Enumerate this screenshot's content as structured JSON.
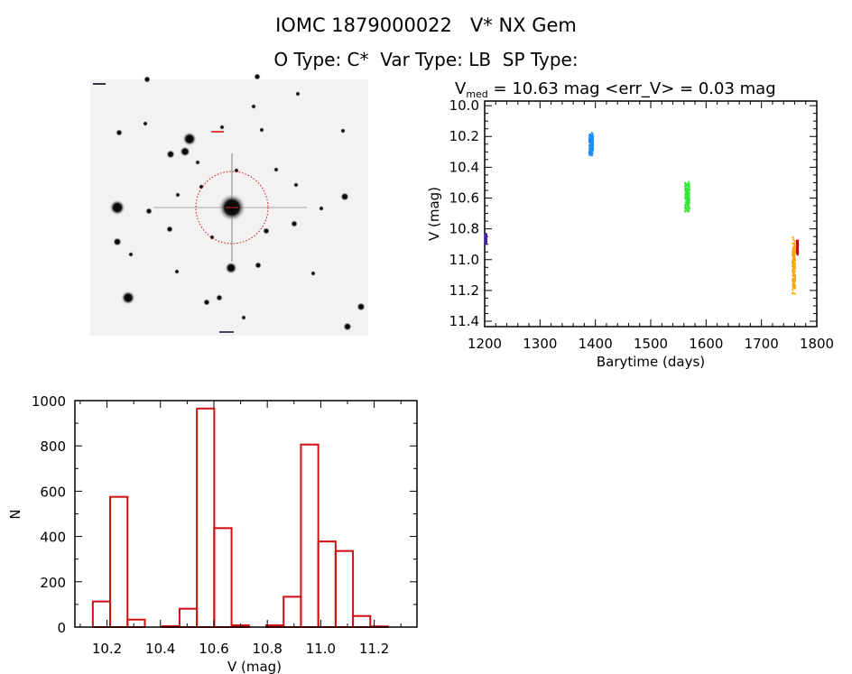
{
  "header": {
    "title_line1": "IOMC 1879000022   V* NX Gem",
    "title_line2": "O Type: C*  Var Type: LB  SP Type:"
  },
  "finder_image": {
    "description_label": "",
    "circle_color": "#d01010"
  },
  "chart_data": [
    {
      "type": "scatter",
      "title_prefix": "V",
      "title_sub": "med",
      "title_rest": " = 10.63 mag <err_V> = 0.03 mag",
      "xlabel": "Barytime (days)",
      "ylabel": "V (mag)",
      "xlim": [
        1200,
        1800
      ],
      "ylim": [
        11.435,
        9.97
      ],
      "y_inverted": true,
      "xticks": [
        "1200",
        "1300",
        "1400",
        "1500",
        "1600",
        "1700",
        "1800"
      ],
      "yticks": [
        "10.0",
        "10.2",
        "10.4",
        "10.6",
        "10.8",
        "11.0",
        "11.2",
        "11.4"
      ],
      "grid": false,
      "clusters": [
        {
          "x_range": [
            1201,
            1203
          ],
          "v_range": [
            10.83,
            10.9
          ],
          "color": "#4b1fa8"
        },
        {
          "x_range": [
            1389,
            1396
          ],
          "v_range": [
            10.17,
            10.33
          ],
          "color": "#1e8ef0"
        },
        {
          "x_range": [
            1562,
            1570
          ],
          "v_range": [
            10.48,
            10.7
          ],
          "color": "#33e833"
        },
        {
          "x_range": [
            1756,
            1761
          ],
          "v_range": [
            10.85,
            11.24
          ],
          "color": "#f5a810"
        },
        {
          "x_range": [
            1764,
            1766
          ],
          "v_range": [
            10.87,
            10.97
          ],
          "color": "#b01818"
        }
      ]
    },
    {
      "type": "bar",
      "subtype": "histogram",
      "xlabel": "V (mag)",
      "ylabel": "N",
      "xlim": [
        10.08,
        11.36
      ],
      "ylim": [
        0,
        1000
      ],
      "xticks": [
        "10.2",
        "10.4",
        "10.6",
        "10.8",
        "11.0",
        "11.2"
      ],
      "yticks": [
        "0",
        "200",
        "400",
        "600",
        "800",
        "1000"
      ],
      "bin_start": 10.147,
      "bin_width": 0.0649,
      "values": [
        113,
        575,
        33,
        0,
        4,
        81,
        965,
        437,
        8,
        0,
        8,
        134,
        806,
        378,
        336,
        49,
        3
      ],
      "color": "#d01010",
      "grid": false
    }
  ]
}
